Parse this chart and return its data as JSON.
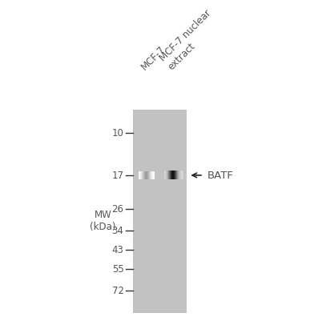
{
  "mw_labels": [
    "72",
    "55",
    "43",
    "34",
    "26",
    "17",
    "10"
  ],
  "mw_values": [
    72,
    55,
    43,
    34,
    26,
    17,
    10
  ],
  "lane_labels": [
    "MCF-7",
    "MCF-7 nuclear\nextract"
  ],
  "band_label": "BATF",
  "band_mw": 17,
  "gel_color": "#c2c2c2",
  "background_color": "#ffffff",
  "mw_axis_label": "MW\n(kDa)",
  "lane1_band_intensity": 0.38,
  "lane2_band_intensity": 0.92,
  "label_color": "#555555",
  "font_size_mw": 8.5,
  "font_size_lane": 8.5,
  "font_size_band_label": 9.5,
  "font_size_mw_title": 8.5
}
